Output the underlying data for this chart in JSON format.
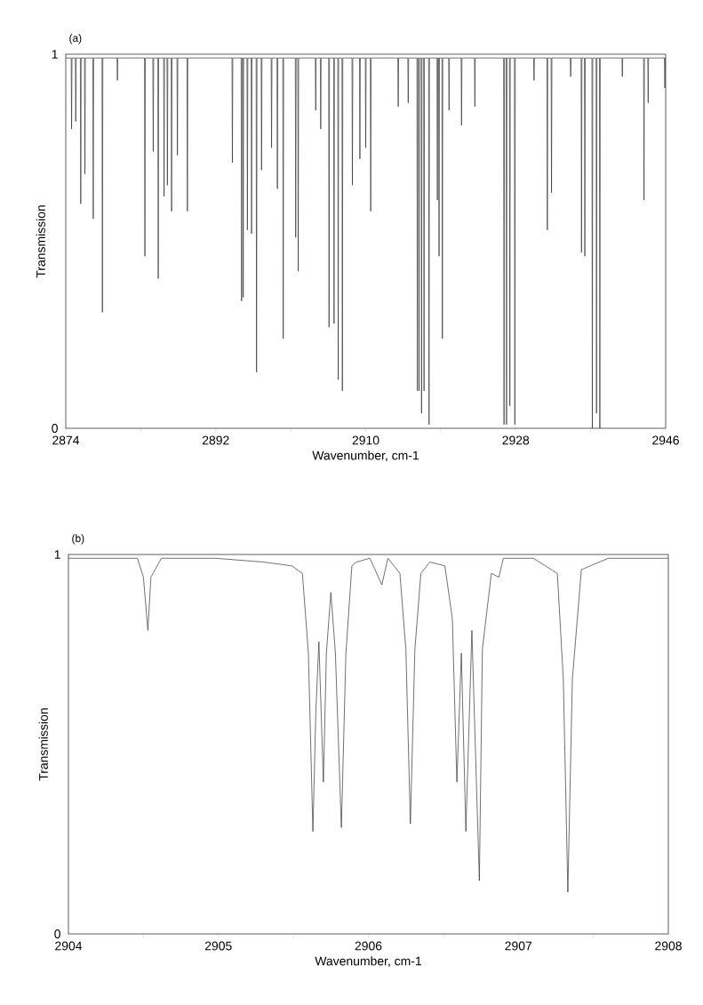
{
  "chart_data": [
    {
      "type": "line",
      "title": "(a)",
      "xlabel": "Wavenumber, cm-1",
      "ylabel": "Transmission",
      "xlim": [
        2874,
        2946
      ],
      "ylim": [
        0,
        1
      ],
      "xticks": [
        2874,
        {
          "value": 2883,
          "label": null
        },
        2892,
        {
          "value": 2901,
          "label": null
        },
        2910,
        {
          "value": 2919,
          "label": null
        },
        2928,
        {
          "value": 2937,
          "label": null
        },
        2946
      ],
      "yticks": [
        0,
        1
      ],
      "x": [
        2874,
        2874.65,
        2874.7,
        2874.75,
        2875.15,
        2875.2,
        2875.25,
        2875.75,
        2875.8,
        2875.85,
        2876.25,
        2876.3,
        2876.35,
        2877.25,
        2877.3,
        2877.35,
        2878.35,
        2878.4,
        2878.45,
        2880.15,
        2880.2,
        2880.25,
        2883.45,
        2883.5,
        2883.55,
        2884.45,
        2884.5,
        2884.55,
        2885.05,
        2885.1,
        2885.15,
        2885.75,
        2885.8,
        2885.85,
        2886.15,
        2886.2,
        2886.25,
        2886.65,
        2886.7,
        2886.75,
        2887.35,
        2887.4,
        2887.45,
        2888.55,
        2888.6,
        2888.65,
        2893.95,
        2894.0,
        2894.05,
        2895.05,
        2895.1,
        2895.15,
        2895.25,
        2895.3,
        2895.35,
        2895.75,
        2895.8,
        2895.85,
        2896.25,
        2896.3,
        2896.35,
        2896.85,
        2896.9,
        2896.95,
        2897.45,
        2897.5,
        2897.55,
        2898.65,
        2898.7,
        2898.75,
        2899.35,
        2899.4,
        2899.45,
        2900.05,
        2900.1,
        2900.15,
        2901.55,
        2901.6,
        2901.65,
        2901.85,
        2901.9,
        2901.95,
        2903.95,
        2904.0,
        2904.05,
        2904.55,
        2904.6,
        2904.65,
        2905.55,
        2905.6,
        2905.65,
        2906.15,
        2906.2,
        2906.25,
        2906.65,
        2906.7,
        2906.75,
        2907.15,
        2907.2,
        2907.25,
        2908.35,
        2908.4,
        2908.45,
        2909.25,
        2909.3,
        2909.35,
        2909.95,
        2910.0,
        2910.05,
        2910.55,
        2910.6,
        2910.65,
        2913.85,
        2913.9,
        2913.95,
        2915.05,
        2915.1,
        2915.15,
        2916.15,
        2916.2,
        2916.25,
        2916.35,
        2916.4,
        2916.45,
        2916.65,
        2916.7,
        2916.75,
        2916.95,
        2917.0,
        2917.05,
        2917.55,
        2917.6,
        2917.65,
        2918.55,
        2918.6,
        2918.65,
        2918.75,
        2918.8,
        2918.85,
        2919.15,
        2919.2,
        2919.25,
        2919.95,
        2920.0,
        2920.05,
        2921.45,
        2921.5,
        2921.55,
        2923.05,
        2923.1,
        2923.15,
        2926.55,
        2926.6,
        2926.65,
        2926.85,
        2926.9,
        2926.95,
        2927.25,
        2927.3,
        2927.35,
        2927.85,
        2927.9,
        2927.95,
        2930.15,
        2930.2,
        2930.25,
        2931.75,
        2931.8,
        2931.85,
        2932.25,
        2932.3,
        2932.35,
        2934.55,
        2934.6,
        2934.65,
        2935.85,
        2935.9,
        2935.95,
        2936.25,
        2936.3,
        2936.35,
        2937.15,
        2937.2,
        2937.25,
        2937.65,
        2937.7,
        2937.75,
        2938.05,
        2938.1,
        2938.15,
        2940.75,
        2940.8,
        2940.85,
        2943.35,
        2943.4,
        2943.45,
        2943.85,
        2943.9,
        2943.95,
        2945.85,
        2945.9,
        2945.95,
        2946
      ],
      "series": [
        {
          "color": "#333333",
          "values": [
            0.99,
            0.99,
            0.8,
            0.99,
            0.99,
            0.82,
            0.99,
            0.99,
            0.6,
            0.99,
            0.99,
            0.68,
            0.99,
            0.99,
            0.56,
            0.99,
            0.99,
            0.31,
            0.99,
            0.99,
            0.93,
            0.99,
            0.99,
            0.46,
            0.99,
            0.99,
            0.74,
            0.99,
            0.99,
            0.4,
            0.99,
            0.99,
            0.62,
            0.99,
            0.99,
            0.65,
            0.99,
            0.99,
            0.58,
            0.99,
            0.99,
            0.73,
            0.99,
            0.99,
            0.58,
            0.99,
            0.99,
            0.71,
            0.99,
            0.99,
            0.34,
            0.99,
            0.99,
            0.35,
            0.99,
            0.99,
            0.53,
            0.99,
            0.99,
            0.52,
            0.99,
            0.99,
            0.15,
            0.99,
            0.99,
            0.69,
            0.99,
            0.99,
            0.75,
            0.99,
            0.99,
            0.64,
            0.99,
            0.99,
            0.24,
            0.99,
            0.99,
            0.51,
            0.99,
            0.99,
            0.42,
            0.99,
            0.99,
            0.85,
            0.99,
            0.99,
            0.8,
            0.99,
            0.99,
            0.27,
            0.99,
            0.99,
            0.28,
            0.99,
            0.99,
            0.13,
            0.99,
            0.99,
            0.1,
            0.99,
            0.99,
            0.65,
            0.99,
            0.99,
            0.72,
            0.99,
            0.99,
            0.75,
            0.99,
            0.99,
            0.58,
            0.99,
            0.99,
            0.86,
            0.99,
            0.99,
            0.87,
            0.99,
            0.99,
            0.1,
            0.99,
            0.99,
            0.1,
            0.99,
            0.99,
            0.04,
            0.99,
            0.99,
            0.1,
            0.99,
            0.99,
            0.01,
            0.99,
            0.99,
            0.61,
            0.99,
            0.99,
            0.46,
            0.99,
            0.99,
            0.24,
            0.99,
            0.99,
            0.85,
            0.99,
            0.99,
            0.81,
            0.99,
            0.99,
            0.86,
            0.99,
            0.99,
            0.01,
            0.99,
            0.99,
            0.01,
            0.99,
            0.99,
            0.06,
            0.99,
            0.99,
            0.01,
            0.99,
            0.99,
            0.93,
            0.99,
            0.99,
            0.53,
            0.99,
            0.99,
            0.63,
            0.99,
            0.99,
            0.94,
            0.99,
            0.99,
            0.47,
            0.99,
            0.99,
            0.46,
            0.99,
            0.99,
            0.0,
            0.99,
            0.99,
            0.04,
            0.99,
            0.99,
            0.0,
            0.99,
            0.99,
            0.94,
            0.99,
            0.99,
            0.61,
            0.99,
            0.99,
            0.87,
            0.99,
            0.99,
            0.91,
            0.99,
            0.99
          ]
        }
      ]
    },
    {
      "type": "line",
      "title": "(b)",
      "xlabel": "Wavenumber, cm-1",
      "ylabel": "Transmission",
      "xlim": [
        2904,
        2908
      ],
      "ylim": [
        0,
        1
      ],
      "xticks": [
        2904,
        {
          "value": 2904.5,
          "label": null
        },
        2905,
        {
          "value": 2905.5,
          "label": null
        },
        2906,
        {
          "value": 2906.5,
          "label": null
        },
        2907,
        {
          "value": 2907.5,
          "label": null
        },
        2908
      ],
      "yticks": [
        0,
        1
      ],
      "x": [
        2904.0,
        2904.46,
        2904.5,
        2904.53,
        2904.55,
        2904.62,
        2904.98,
        2905.3,
        2905.49,
        2905.56,
        2905.6,
        2905.63,
        2905.65,
        2905.67,
        2905.7,
        2905.72,
        2905.75,
        2905.78,
        2905.82,
        2905.85,
        2905.89,
        2905.92,
        2906.01,
        2906.09,
        2906.13,
        2906.21,
        2906.25,
        2906.28,
        2906.31,
        2906.35,
        2906.41,
        2906.51,
        2906.56,
        2906.59,
        2906.62,
        2906.65,
        2906.69,
        2906.74,
        2906.76,
        2906.82,
        2906.87,
        2906.9,
        2907.1,
        2907.26,
        2907.3,
        2907.33,
        2907.36,
        2907.42,
        2907.6,
        2908.0
      ],
      "series": [
        {
          "color": "#333333",
          "values": [
            0.99,
            0.99,
            0.94,
            0.8,
            0.94,
            0.99,
            0.99,
            0.98,
            0.97,
            0.95,
            0.74,
            0.27,
            0.59,
            0.77,
            0.4,
            0.74,
            0.9,
            0.74,
            0.28,
            0.74,
            0.97,
            0.98,
            0.99,
            0.92,
            0.99,
            0.95,
            0.75,
            0.29,
            0.75,
            0.95,
            0.98,
            0.97,
            0.83,
            0.4,
            0.74,
            0.27,
            0.8,
            0.14,
            0.75,
            0.95,
            0.94,
            0.99,
            0.99,
            0.95,
            0.67,
            0.11,
            0.67,
            0.96,
            0.99,
            0.99
          ]
        }
      ]
    }
  ]
}
